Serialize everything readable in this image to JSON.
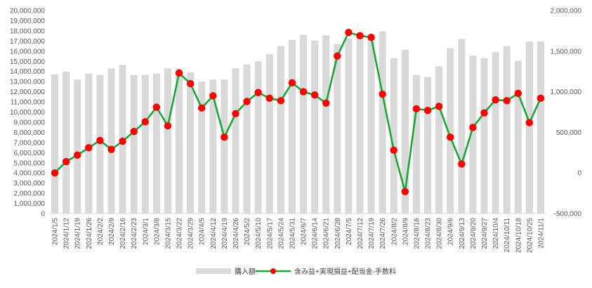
{
  "chart_data": {
    "type": "bar+line",
    "categories": [
      "2024/1/5",
      "2024/1/12",
      "2024/1/19",
      "2024/1/26",
      "2024/2/2",
      "2024/2/9",
      "2024/2/16",
      "2024/2/23",
      "2024/3/1",
      "2024/3/8",
      "2024/3/15",
      "2024/3/22",
      "2024/3/29",
      "2024/4/5",
      "2024/4/12",
      "2024/4/19",
      "2024/4/26",
      "2024/5/2",
      "2024/5/10",
      "2024/5/17",
      "2024/5/24",
      "2024/5/31",
      "2024/6/7",
      "2024/6/14",
      "2024/6/21",
      "2024/6/28",
      "2024/7/5",
      "2024/7/12",
      "2024/7/19",
      "2024/7/26",
      "2024/8/2",
      "2024/8/9",
      "2024/8/16",
      "2024/8/23",
      "2024/8/30",
      "2024/9/6",
      "2024/9/13",
      "2024/9/20",
      "2024/9/27",
      "2024/10/4",
      "2024/10/11",
      "2024/10/18",
      "2024/10/25",
      "2024/11/1"
    ],
    "series": [
      {
        "name": "購入額",
        "type": "bar",
        "axis": "left",
        "color": "#d9d9d9",
        "values": [
          13700000,
          14000000,
          13200000,
          13800000,
          13650000,
          14300000,
          14650000,
          13650000,
          13650000,
          13800000,
          14300000,
          14300000,
          13900000,
          13000000,
          13200000,
          13200000,
          14300000,
          14700000,
          15000000,
          15700000,
          16500000,
          17100000,
          17600000,
          17050000,
          17550000,
          16700000,
          17250000,
          17550000,
          17500000,
          17950000,
          15300000,
          16150000,
          13650000,
          13450000,
          14500000,
          16300000,
          17200000,
          15550000,
          15300000,
          15900000,
          16500000,
          15050000,
          16950000,
          16950000
        ]
      },
      {
        "name": "含み益+実現損益+配当金-手数料",
        "type": "line",
        "axis": "right",
        "color": "#18a838",
        "marker_color": "#ff0000",
        "values": [
          0,
          140000,
          220000,
          310000,
          400000,
          290000,
          390000,
          510000,
          630000,
          810000,
          580000,
          1230000,
          1100000,
          800000,
          950000,
          440000,
          730000,
          880000,
          990000,
          920000,
          890000,
          1110000,
          1000000,
          960000,
          860000,
          1440000,
          1730000,
          1690000,
          1670000,
          970000,
          280000,
          -230000,
          790000,
          770000,
          820000,
          440000,
          110000,
          560000,
          740000,
          900000,
          890000,
          980000,
          620000,
          920000
        ]
      }
    ],
    "y_left": {
      "min": 0,
      "max": 20000000,
      "step": 1000000,
      "ticks": [
        "0",
        "1,000,000",
        "2,000,000",
        "3,000,000",
        "4,000,000",
        "5,000,000",
        "6,000,000",
        "7,000,000",
        "8,000,000",
        "9,000,000",
        "10,000,000",
        "11,000,000",
        "12,000,000",
        "13,000,000",
        "14,000,000",
        "15,000,000",
        "16,000,000",
        "17,000,000",
        "18,000,000",
        "19,000,000",
        "20,000,000"
      ]
    },
    "y_right": {
      "min": -500000,
      "max": 2000000,
      "step": 500000,
      "ticks": [
        "-500,000",
        "0",
        "500,000",
        "1,000,000",
        "1,500,000",
        "2,000,000"
      ]
    },
    "grid": false,
    "legend_position": "bottom"
  }
}
